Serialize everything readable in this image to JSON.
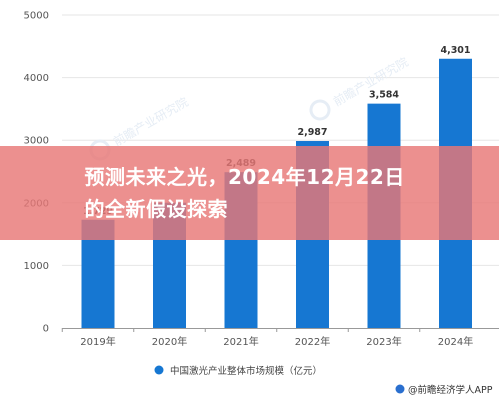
{
  "banner": {
    "title": "预测未来之光，2024年12月22日的全新假设探索"
  },
  "chart_data": {
    "type": "bar",
    "categories": [
      "2019年",
      "2020年",
      "2021年",
      "2022年",
      "2023年",
      "2024年"
    ],
    "series": [
      {
        "name": "中国激光产业整体市场规模（亿元）",
        "values": [
          1729,
          2000,
          2489,
          2987,
          3584,
          4301
        ],
        "color": "#1677d2"
      }
    ],
    "data_labels": [
      "1,729",
      "",
      "2,489",
      "2,987",
      "3,584",
      "4,301"
    ],
    "y_ticks": [
      "0",
      "1000",
      "2000",
      "3000",
      "4000",
      "5000"
    ],
    "ylim": [
      0,
      5000
    ],
    "grid": true,
    "legend": "bottom-center",
    "watermark": "前瞻产业研究院",
    "source": "@前瞻经济学人APP"
  }
}
